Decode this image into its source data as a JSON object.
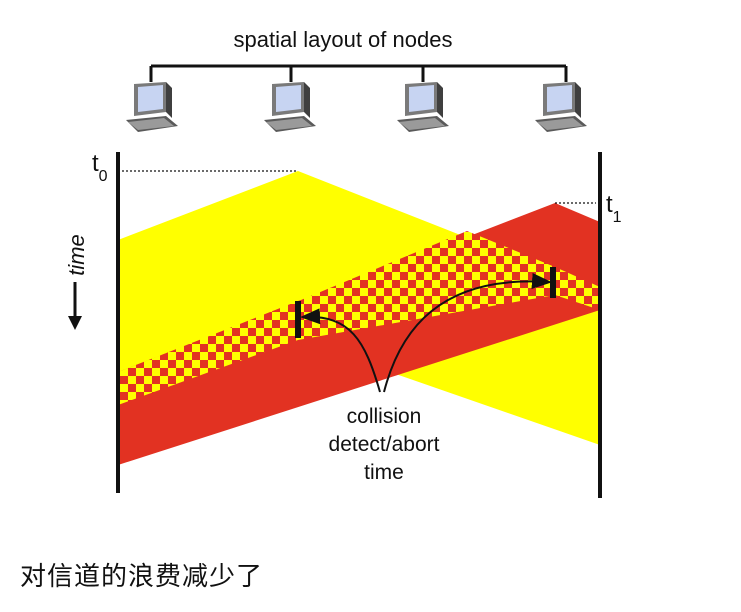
{
  "diagram": {
    "title": "spatial layout of nodes",
    "time_axis_label": "time",
    "t0_label": "t",
    "t0_sub": "0",
    "t1_label": "t",
    "t1_sub": "1",
    "annotation_line1": "collision",
    "annotation_line2": "detect/abort",
    "annotation_line3": "time",
    "node_count": 4,
    "colors": {
      "yellow": "#ffff00",
      "red": "#e23222",
      "line": "#111111"
    },
    "icons": [
      "computer-icon",
      "computer-icon",
      "computer-icon",
      "computer-icon"
    ]
  },
  "caption": "对信道的浪费减少了"
}
